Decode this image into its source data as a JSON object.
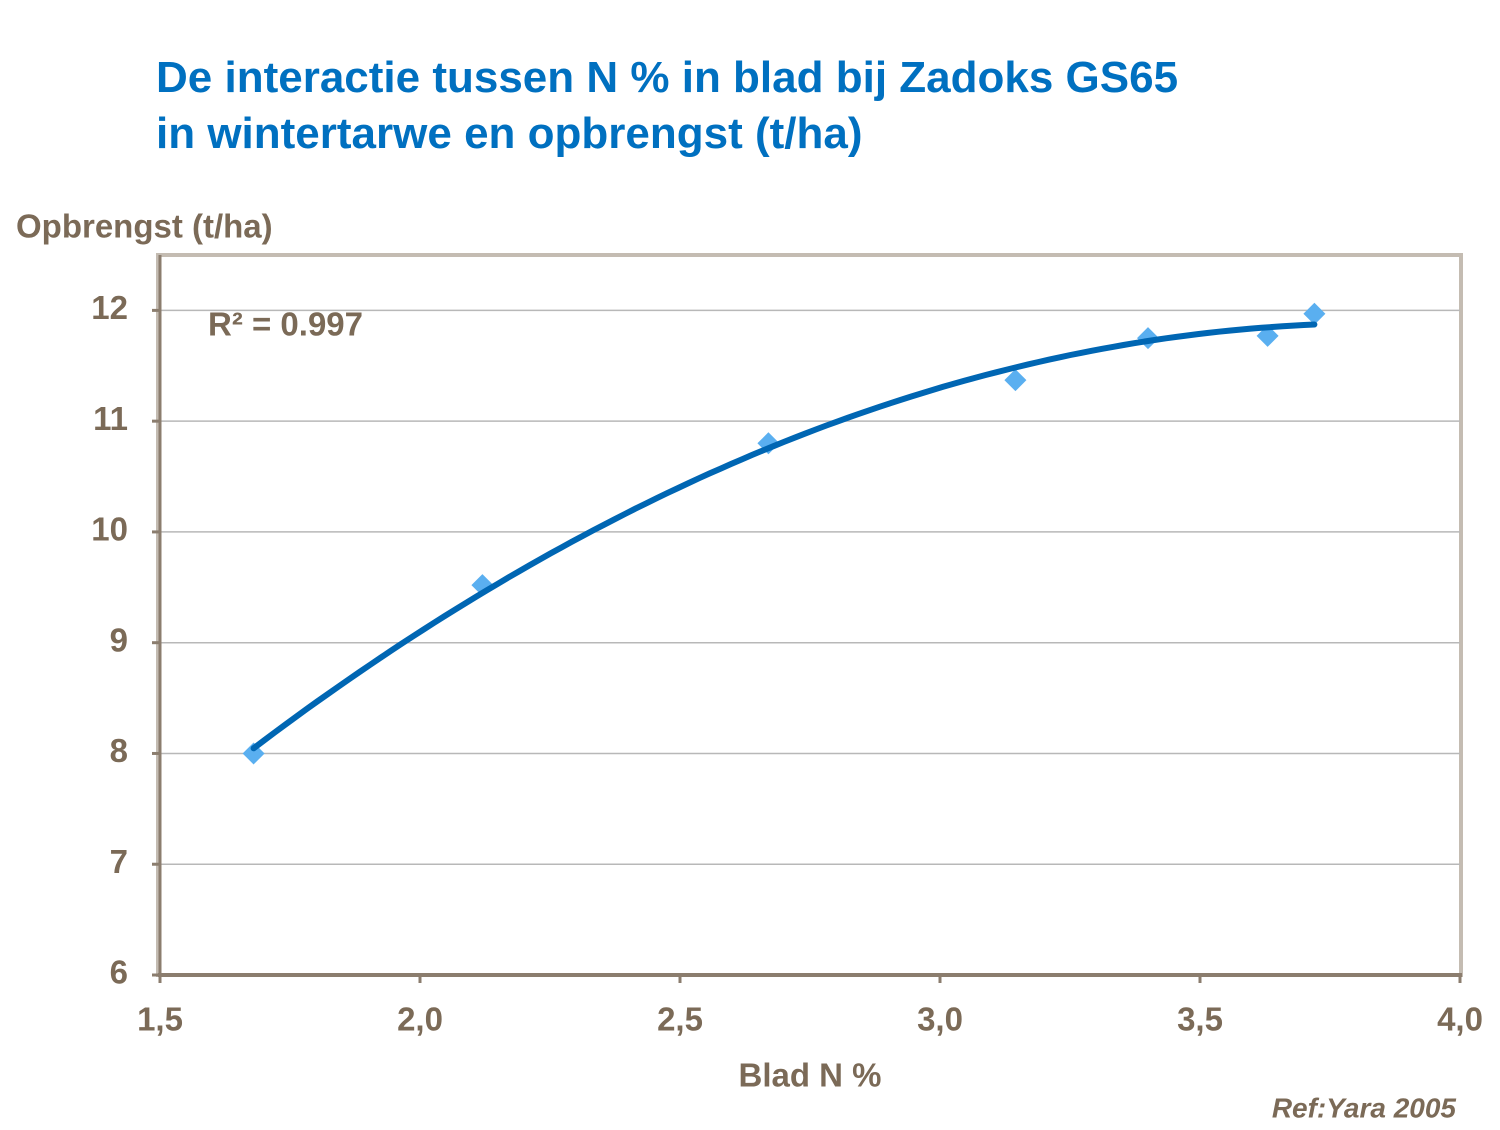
{
  "chart_data": {
    "type": "scatter",
    "title": [
      "De interactie tussen N % in blad bij Zadoks GS65",
      "in wintertarwe en opbrengst (t/ha)"
    ],
    "y_label": "Opbrengst (t/ha)",
    "x_label": "Blad N %",
    "annotation": "R² = 0.997",
    "source": "Ref:Yara 2005",
    "trendline": "polynomial",
    "x": [
      1.68,
      2.12,
      2.67,
      3.145,
      3.4,
      3.63,
      3.72
    ],
    "values": [
      8.0,
      9.52,
      10.8,
      11.37,
      11.75,
      11.77,
      11.97
    ],
    "color": "#5aaff0",
    "trend_color": "#0066b3",
    "xlim": [
      1.5,
      4.0
    ],
    "xticks": [
      {
        "value": 1.5,
        "label": "1,5"
      },
      {
        "value": 2.0,
        "label": "2,0"
      },
      {
        "value": 2.5,
        "label": "2,5"
      },
      {
        "value": 3.0,
        "label": "3,0"
      },
      {
        "value": 3.5,
        "label": "3,5"
      },
      {
        "value": 4.0,
        "label": "4,0"
      }
    ],
    "ylim": [
      6,
      12.5
    ],
    "yticks": [
      6,
      7,
      8,
      9,
      10,
      11,
      12
    ],
    "grid": true
  }
}
